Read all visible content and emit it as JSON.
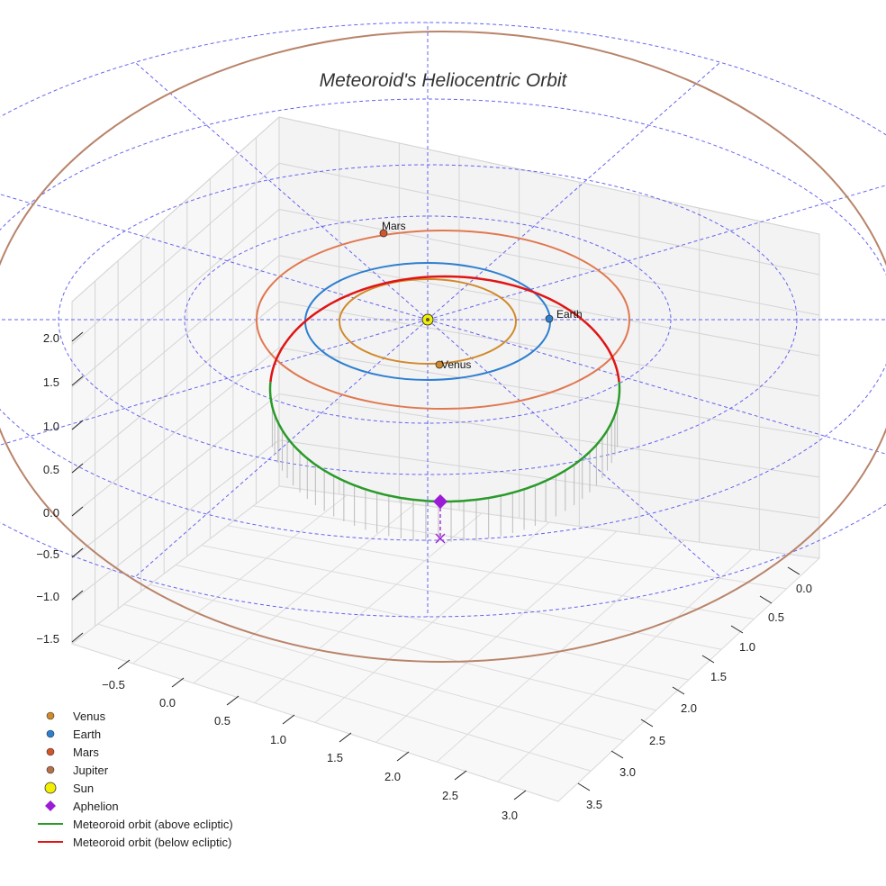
{
  "chart_data": {
    "type": "line",
    "title": "Meteoroid's Heliocentric Orbit",
    "xlabel": "",
    "ylabel": "",
    "zlabel": "",
    "projection": "3d",
    "grid": true,
    "legend_position": "bottom-left",
    "axes": {
      "x_ticks": [
        "−0.5",
        "0.0",
        "0.5",
        "1.0",
        "1.5",
        "2.0",
        "2.5",
        "3.0"
      ],
      "y_ticks": [
        "0.0",
        "0.5",
        "1.0",
        "1.5",
        "2.0",
        "2.5",
        "3.0",
        "3.5"
      ],
      "z_ticks": [
        "2.0",
        "1.5",
        "1.0",
        "0.5",
        "0.0",
        "−0.5",
        "−1.0",
        "−1.5"
      ]
    },
    "colors": {
      "venus": "#d08a2a",
      "earth": "#2e7fd0",
      "mars": "#d4542a",
      "jupiter": "#b5704a",
      "sun": "#f2f000",
      "aphelion": "#9b1bd6",
      "above": "#2a9a2a",
      "below": "#e01414",
      "ecliptic_grid": "#4a4af0",
      "mars_orbit": "#e07850",
      "jupiter_orbit": "#b8846a"
    },
    "series": [
      {
        "name": "Venus",
        "kind": "planet",
        "orbit_radius_au": 0.72
      },
      {
        "name": "Earth",
        "kind": "planet",
        "orbit_radius_au": 1.0
      },
      {
        "name": "Mars",
        "kind": "planet",
        "orbit_radius_au": 1.52
      },
      {
        "name": "Jupiter",
        "kind": "planet",
        "orbit_radius_au": 5.2
      },
      {
        "name": "Sun",
        "kind": "star",
        "position": [
          0,
          0,
          0
        ]
      },
      {
        "name": "Aphelion",
        "kind": "marker",
        "position": [
          0.1,
          1.9,
          0.1
        ]
      },
      {
        "name": "Meteoroid orbit (above ecliptic)",
        "kind": "orbit"
      },
      {
        "name": "Meteoroid orbit (below ecliptic)",
        "kind": "orbit"
      }
    ],
    "planet_labels": [
      {
        "name": "Mars",
        "text": "Mars"
      },
      {
        "name": "Earth",
        "text": "Earth"
      },
      {
        "name": "Venus",
        "text": "Venus"
      }
    ],
    "legend": [
      {
        "label": "Venus",
        "marker": "dot",
        "color": "#d08a2a"
      },
      {
        "label": "Earth",
        "marker": "dot",
        "color": "#2e7fd0"
      },
      {
        "label": "Mars",
        "marker": "dot",
        "color": "#d4542a"
      },
      {
        "label": "Jupiter",
        "marker": "dot",
        "color": "#b5704a"
      },
      {
        "label": "Sun",
        "marker": "big-dot",
        "color": "#f2f000"
      },
      {
        "label": "Aphelion",
        "marker": "diamond",
        "color": "#9b1bd6"
      },
      {
        "label": "Meteoroid orbit (above ecliptic)",
        "marker": "line",
        "color": "#2a9a2a"
      },
      {
        "label": "Meteoroid orbit (below ecliptic)",
        "marker": "line",
        "color": "#e01414"
      }
    ]
  }
}
